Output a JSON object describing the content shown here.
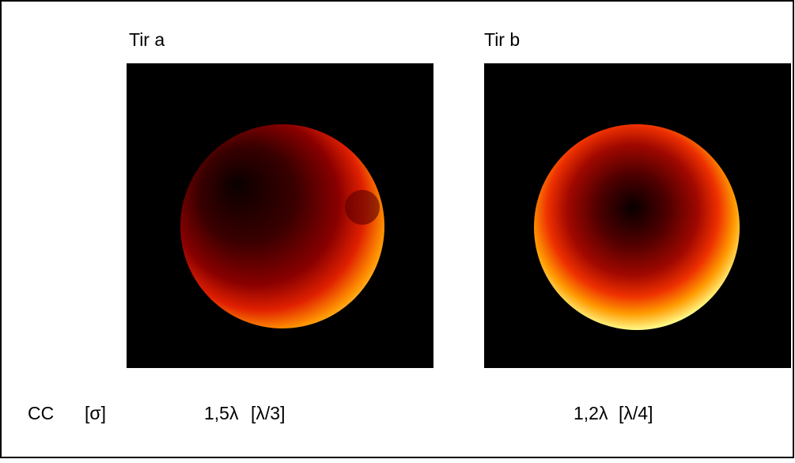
{
  "row_label": "CC",
  "row_unit": "[σ]",
  "panels": [
    {
      "title": "Tir a",
      "value": "1,5λ",
      "error": "[λ/3]"
    },
    {
      "title": "Tir b",
      "value": "1,2λ",
      "error": "[λ/4]"
    }
  ]
}
